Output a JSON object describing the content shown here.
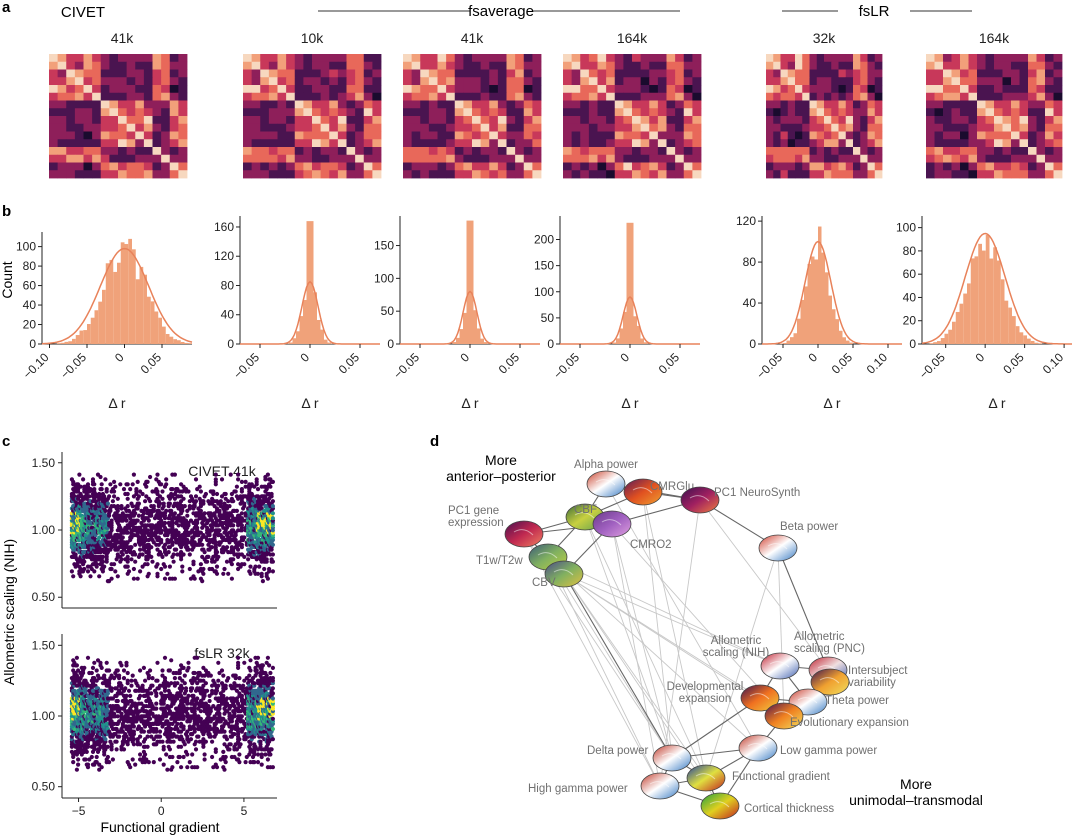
{
  "panel_labels": {
    "a": "a",
    "b": "b",
    "c": "c",
    "d": "d"
  },
  "groups": {
    "civet": "CIVET",
    "fsaverage": "fsaverage",
    "fslr": "fsLR"
  },
  "chart_data": [
    {
      "panel": "a",
      "type": "heatmap",
      "matrix_size": 16,
      "colormap": [
        "#1a0b2e",
        "#4a1450",
        "#8e1f5a",
        "#c8385a",
        "#e8685a",
        "#f2a07a",
        "#f7d8bf"
      ],
      "matrices": [
        {
          "group": "CIVET",
          "title": "41k"
        },
        {
          "group": "fsaverage",
          "title": "10k"
        },
        {
          "group": "fsaverage",
          "title": "41k"
        },
        {
          "group": "fsaverage",
          "title": "164k"
        },
        {
          "group": "fsLR",
          "title": "32k"
        },
        {
          "group": "fsLR",
          "title": "164k"
        }
      ]
    },
    {
      "panel": "b",
      "type": "bar",
      "ylabel": "Count",
      "xlabel": "Δ r",
      "bar_color": "#f0a27a",
      "kde_color": "#e8825a",
      "histograms": [
        {
          "xlim": [
            -0.11,
            0.09
          ],
          "ylim": [
            0,
            115
          ],
          "xticks": [
            -0.1,
            -0.05,
            0,
            0.05
          ],
          "xtick_labels": [
            "−0.10",
            "−0.05",
            "0",
            "0.05"
          ],
          "yticks": [
            0,
            20,
            40,
            60,
            80,
            100
          ],
          "ytick_labels": [
            "0",
            "20",
            "40",
            "60",
            "80",
            "100"
          ],
          "mu": 0.0,
          "sigma": 0.028,
          "peak": 98
        },
        {
          "xlim": [
            -0.07,
            0.07
          ],
          "ylim": [
            0,
            175
          ],
          "xticks": [
            -0.05,
            0,
            0.05
          ],
          "xtick_labels": [
            "−0.05",
            "0",
            "0.05"
          ],
          "yticks": [
            0,
            40,
            80,
            120,
            160
          ],
          "ytick_labels": [
            "0",
            "40",
            "80",
            "120",
            "160"
          ],
          "mu": 0.0,
          "sigma": 0.007,
          "peak": 85,
          "spike": 168
        },
        {
          "xlim": [
            -0.07,
            0.07
          ],
          "ylim": [
            0,
            195
          ],
          "xticks": [
            -0.05,
            0,
            0.05
          ],
          "xtick_labels": [
            "−0.05",
            "0",
            "0.05"
          ],
          "yticks": [
            0,
            50,
            100,
            150
          ],
          "ytick_labels": [
            "0",
            "50",
            "100",
            "150"
          ],
          "mu": 0.0,
          "sigma": 0.006,
          "peak": 80,
          "spike": 188
        },
        {
          "xlim": [
            -0.07,
            0.07
          ],
          "ylim": [
            0,
            245
          ],
          "xticks": [
            -0.05,
            0,
            0.05
          ],
          "xtick_labels": [
            "−0.05",
            "0",
            "0.05"
          ],
          "yticks": [
            0,
            50,
            100,
            150,
            200
          ],
          "ytick_labels": [
            "0",
            "50",
            "100",
            "150",
            "200"
          ],
          "mu": 0.0,
          "sigma": 0.006,
          "peak": 90,
          "spike": 232
        },
        {
          "xlim": [
            -0.08,
            0.12
          ],
          "ylim": [
            0,
            125
          ],
          "xticks": [
            -0.05,
            0,
            0.05,
            0.1
          ],
          "xtick_labels": [
            "−0.05",
            "0",
            "0.05",
            "0.10"
          ],
          "yticks": [
            0,
            40,
            80,
            120
          ],
          "ytick_labels": [
            "0",
            "40",
            "80",
            "120"
          ],
          "mu": 0.0,
          "sigma": 0.016,
          "peak": 100
        },
        {
          "xlim": [
            -0.08,
            0.11
          ],
          "ylim": [
            0,
            110
          ],
          "xticks": [
            -0.05,
            0,
            0.05,
            0.1
          ],
          "xtick_labels": [
            "−0.05",
            "0",
            "0.05",
            "0.10"
          ],
          "yticks": [
            0,
            20,
            40,
            60,
            80,
            100
          ],
          "ytick_labels": [
            "0",
            "20",
            "40",
            "60",
            "80",
            "100"
          ],
          "mu": 0.0,
          "sigma": 0.022,
          "peak": 95
        }
      ]
    },
    {
      "panel": "c",
      "type": "scatter",
      "xlabel": "Functional gradient",
      "ylabel": "Allometric scaling (NIH)",
      "xlim": [
        -6,
        7
      ],
      "ylim": [
        0.42,
        1.58
      ],
      "xticks": [
        -5,
        0,
        5
      ],
      "xtick_labels": [
        "−5",
        "0",
        "5"
      ],
      "yticks": [
        0.5,
        1.0,
        1.5
      ],
      "ytick_labels": [
        "0.50",
        "1.00",
        "1.50"
      ],
      "colors": [
        "#440154",
        "#31688e",
        "#21918c",
        "#35b779",
        "#fde725"
      ],
      "series": [
        {
          "name": "CIVET 41k"
        },
        {
          "name": "fsLR 32k"
        }
      ]
    },
    {
      "panel": "d",
      "type": "scatter",
      "annotations": {
        "top": [
          "More",
          "anterior–posterior"
        ],
        "bottom": [
          "More",
          "unimodal–transmodal"
        ]
      },
      "nodes": [
        {
          "id": "alpha",
          "label": "Alpha power"
        },
        {
          "id": "cmrglu",
          "label": "CMRGlu"
        },
        {
          "id": "pc1ns",
          "label": "PC1 NeuroSynth"
        },
        {
          "id": "pc1gene",
          "label": "PC1 gene\nexpression"
        },
        {
          "id": "cbf",
          "label": "CBF"
        },
        {
          "id": "cmro2",
          "label": "CMRO2"
        },
        {
          "id": "beta",
          "label": "Beta power"
        },
        {
          "id": "t1t2",
          "label": "T1w/T2w"
        },
        {
          "id": "cbv",
          "label": "CBV"
        },
        {
          "id": "allonih",
          "label": "Allometric\nscaling (NIH)"
        },
        {
          "id": "allopnc",
          "label": "Allometric\nscaling (PNC)"
        },
        {
          "id": "intersub",
          "label": "Intersubject\nvariability"
        },
        {
          "id": "devexp",
          "label": "Developmental\nexpansion"
        },
        {
          "id": "theta",
          "label": "Theta power"
        },
        {
          "id": "evoexp",
          "label": "Evolutionary expansion"
        },
        {
          "id": "delta",
          "label": "Delta power"
        },
        {
          "id": "lowgamma",
          "label": "Low gamma power"
        },
        {
          "id": "funcgrad",
          "label": "Functional gradient"
        },
        {
          "id": "highgamma",
          "label": "High gamma power"
        },
        {
          "id": "cortthick",
          "label": "Cortical thickness"
        }
      ]
    }
  ]
}
